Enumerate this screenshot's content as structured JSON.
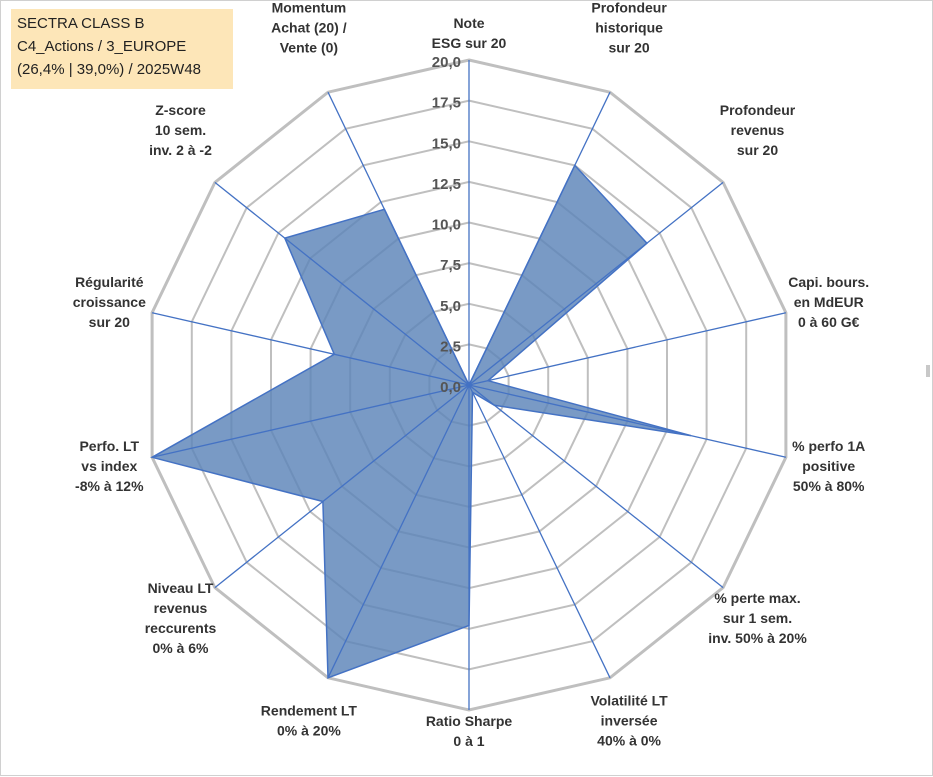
{
  "info_box": {
    "line1": "SECTRA CLASS B",
    "line2": "C4_Actions / 3_EUROPE",
    "line3": "(26,4% | 39,0%) / 2025W48"
  },
  "colors": {
    "fill": "#5b84b8",
    "stroke": "#4472c4",
    "spoke": "#4472c4",
    "grid": "#bfbfbf",
    "info_bg": "#fde6b8"
  },
  "chart_data": {
    "type": "radar",
    "title": "",
    "rmin": 0,
    "rmax": 20,
    "ticks": [
      "0,0",
      "2,5",
      "5,0",
      "7,5",
      "10,0",
      "12,5",
      "15,0",
      "17,5",
      "20,0"
    ],
    "tick_values": [
      0,
      2.5,
      5,
      7.5,
      10,
      12.5,
      15,
      17.5,
      20
    ],
    "axes": [
      {
        "label": [
          "Note",
          "ESG sur 20"
        ],
        "value": 0
      },
      {
        "label": [
          "Profondeur",
          "historique",
          "sur 20"
        ],
        "value": 15
      },
      {
        "label": [
          "Profondeur",
          "revenus",
          "sur 20"
        ],
        "value": 14
      },
      {
        "label": [
          "Capi. bours.",
          "en MdEUR",
          "0 à 60 G€"
        ],
        "value": 1.2
      },
      {
        "label": [
          "% perfo 1A",
          "positive",
          "50% à 80%"
        ],
        "value": 14
      },
      {
        "label": [
          "% perte max.",
          "sur 1 sem.",
          "inv. 50% à 20%"
        ],
        "value": 2
      },
      {
        "label": [
          "Volatilité LT",
          "inversée",
          "40% à 0%"
        ],
        "value": 0.5
      },
      {
        "label": [
          "Ratio Sharpe",
          "0 à 1"
        ],
        "value": 14.8
      },
      {
        "label": [
          "Rendement LT",
          "0% à 20%"
        ],
        "value": 20
      },
      {
        "label": [
          "Niveau LT",
          "revenus",
          "reccurents",
          "0% à 6%"
        ],
        "value": 11.5
      },
      {
        "label": [
          "Perfo. LT",
          "vs index",
          "-8% à 12%"
        ],
        "value": 20
      },
      {
        "label": [
          "Régularité",
          "croissance",
          "sur 20"
        ],
        "value": 8.5
      },
      {
        "label": [
          "Z-score",
          "10 sem.",
          "inv. 2 à -2"
        ],
        "value": 14.5
      },
      {
        "label": [
          "Momentum",
          "Achat (20) /",
          "Vente (0)"
        ],
        "value": 12
      }
    ]
  }
}
